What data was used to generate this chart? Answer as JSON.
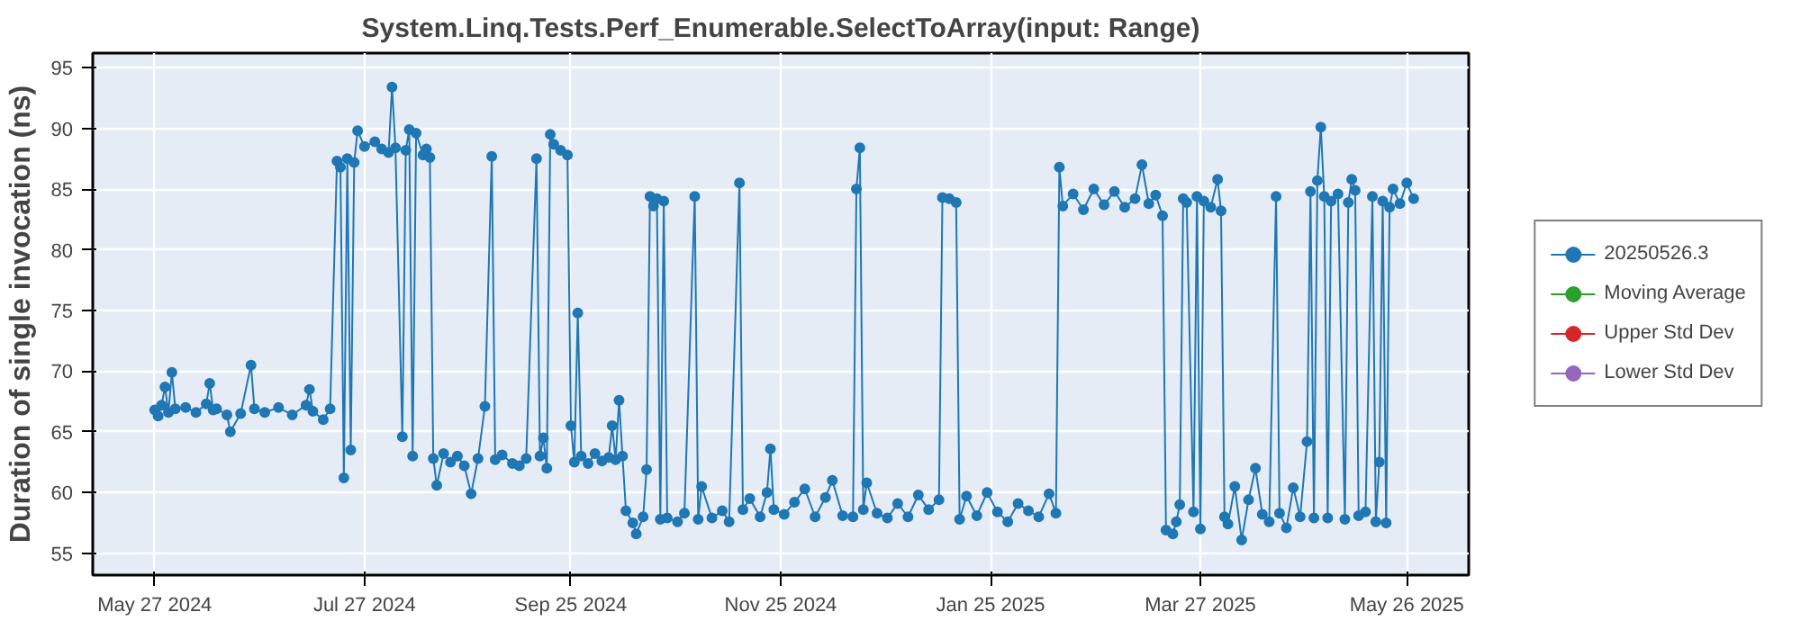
{
  "chart_data": {
    "type": "line",
    "title": "System.Linq.Tests.Perf_Enumerable.SelectToArray(input: Range)",
    "ylabel": "Duration of single invocation (ns)",
    "x": [
      "2024-05-27",
      "2024-05-28",
      "2024-05-29",
      "2024-05-30",
      "2024-05-31",
      "2024-06-01",
      "2024-06-02",
      "2024-06-05",
      "2024-06-08",
      "2024-06-11",
      "2024-06-12",
      "2024-06-13",
      "2024-06-14",
      "2024-06-17",
      "2024-06-18",
      "2024-06-21",
      "2024-06-24",
      "2024-06-25",
      "2024-06-28",
      "2024-07-02",
      "2024-07-06",
      "2024-07-10",
      "2024-07-11",
      "2024-07-12",
      "2024-07-15",
      "2024-07-17",
      "2024-07-19",
      "2024-07-20",
      "2024-07-21",
      "2024-07-22",
      "2024-07-23",
      "2024-07-24",
      "2024-07-25",
      "2024-07-27",
      "2024-07-30",
      "2024-08-01",
      "2024-08-03",
      "2024-08-04",
      "2024-08-05",
      "2024-08-07",
      "2024-08-08",
      "2024-08-09",
      "2024-08-10",
      "2024-08-11",
      "2024-08-13",
      "2024-08-14",
      "2024-08-15",
      "2024-08-16",
      "2024-08-17",
      "2024-08-19",
      "2024-08-21",
      "2024-08-23",
      "2024-08-25",
      "2024-08-27",
      "2024-08-29",
      "2024-08-31",
      "2024-09-02",
      "2024-09-03",
      "2024-09-05",
      "2024-09-08",
      "2024-09-10",
      "2024-09-12",
      "2024-09-15",
      "2024-09-16",
      "2024-09-17",
      "2024-09-18",
      "2024-09-19",
      "2024-09-20",
      "2024-09-22",
      "2024-09-24",
      "2024-09-25",
      "2024-09-26",
      "2024-09-27",
      "2024-09-28",
      "2024-09-30",
      "2024-10-02",
      "2024-10-04",
      "2024-10-06",
      "2024-10-07",
      "2024-10-08",
      "2024-10-09",
      "2024-10-10",
      "2024-10-11",
      "2024-10-13",
      "2024-10-14",
      "2024-10-16",
      "2024-10-17",
      "2024-10-18",
      "2024-10-19",
      "2024-10-20",
      "2024-10-21",
      "2024-10-22",
      "2024-10-23",
      "2024-10-26",
      "2024-10-28",
      "2024-10-31",
      "2024-11-01",
      "2024-11-02",
      "2024-11-05",
      "2024-11-08",
      "2024-11-10",
      "2024-11-13",
      "2024-11-14",
      "2024-11-16",
      "2024-11-19",
      "2024-11-21",
      "2024-11-22",
      "2024-11-23",
      "2024-11-26",
      "2024-11-29",
      "2024-12-02",
      "2024-12-05",
      "2024-12-08",
      "2024-12-10",
      "2024-12-13",
      "2024-12-16",
      "2024-12-17",
      "2024-12-18",
      "2024-12-19",
      "2024-12-20",
      "2024-12-23",
      "2024-12-26",
      "2024-12-29",
      "2025-01-01",
      "2025-01-04",
      "2025-01-07",
      "2025-01-10",
      "2025-01-11",
      "2025-01-13",
      "2025-01-15",
      "2025-01-16",
      "2025-01-18",
      "2025-01-21",
      "2025-01-24",
      "2025-01-27",
      "2025-01-30",
      "2025-02-02",
      "2025-02-05",
      "2025-02-08",
      "2025-02-11",
      "2025-02-13",
      "2025-02-14",
      "2025-02-15",
      "2025-02-18",
      "2025-02-21",
      "2025-02-24",
      "2025-02-27",
      "2025-03-02",
      "2025-03-05",
      "2025-03-08",
      "2025-03-10",
      "2025-03-12",
      "2025-03-14",
      "2025-03-16",
      "2025-03-17",
      "2025-03-19",
      "2025-03-20",
      "2025-03-21",
      "2025-03-22",
      "2025-03-23",
      "2025-03-25",
      "2025-03-26",
      "2025-03-27",
      "2025-03-28",
      "2025-03-30",
      "2025-04-01",
      "2025-04-02",
      "2025-04-03",
      "2025-04-04",
      "2025-04-06",
      "2025-04-08",
      "2025-04-10",
      "2025-04-12",
      "2025-04-14",
      "2025-04-16",
      "2025-04-18",
      "2025-04-19",
      "2025-04-21",
      "2025-04-23",
      "2025-04-25",
      "2025-04-27",
      "2025-04-28",
      "2025-04-29",
      "2025-04-30",
      "2025-05-01",
      "2025-05-02",
      "2025-05-03",
      "2025-05-04",
      "2025-05-06",
      "2025-05-08",
      "2025-05-09",
      "2025-05-10",
      "2025-05-11",
      "2025-05-12",
      "2025-05-14",
      "2025-05-16",
      "2025-05-17",
      "2025-05-18",
      "2025-05-19",
      "2025-05-20",
      "2025-05-21",
      "2025-05-22",
      "2025-05-24",
      "2025-05-26",
      "2025-05-28"
    ],
    "series": [
      {
        "name": "20250526.3",
        "color": "#1f77b4",
        "values": [
          66.8,
          66.3,
          67.2,
          68.7,
          66.6,
          69.9,
          66.9,
          67.0,
          66.6,
          67.3,
          69.0,
          66.8,
          66.9,
          66.4,
          65.0,
          66.5,
          70.5,
          66.9,
          66.6,
          67.0,
          66.4,
          67.2,
          68.5,
          66.7,
          66.0,
          66.9,
          87.3,
          86.8,
          61.2,
          87.5,
          63.5,
          87.2,
          89.8,
          88.5,
          88.9,
          88.3,
          88.0,
          93.4,
          88.4,
          64.6,
          88.2,
          89.9,
          63.0,
          89.6,
          87.8,
          88.3,
          87.6,
          62.8,
          60.6,
          63.2,
          62.5,
          63.0,
          62.2,
          59.9,
          62.8,
          67.1,
          87.7,
          62.7,
          63.1,
          62.4,
          62.2,
          62.8,
          87.5,
          63.0,
          64.5,
          62.0,
          89.5,
          88.7,
          88.2,
          87.8,
          65.5,
          62.5,
          74.8,
          63.0,
          62.4,
          63.2,
          62.6,
          62.9,
          65.5,
          62.7,
          67.6,
          63.0,
          58.5,
          57.5,
          56.6,
          58.0,
          61.9,
          84.4,
          83.6,
          84.2,
          57.8,
          84.0,
          57.9,
          57.6,
          58.3,
          84.4,
          57.8,
          60.5,
          57.9,
          58.5,
          57.6,
          85.5,
          58.6,
          59.5,
          58.0,
          60.0,
          63.6,
          58.6,
          58.2,
          59.2,
          60.3,
          58.0,
          59.6,
          61.0,
          58.1,
          58.0,
          85.0,
          88.4,
          58.6,
          60.8,
          58.3,
          57.9,
          59.1,
          58.0,
          59.8,
          58.6,
          59.4,
          84.3,
          84.2,
          83.9,
          57.8,
          59.7,
          58.1,
          60.0,
          58.4,
          57.6,
          59.1,
          58.5,
          58.0,
          59.9,
          58.3,
          86.8,
          83.6,
          84.6,
          83.3,
          85.0,
          83.7,
          84.8,
          83.5,
          84.2,
          87.0,
          83.8,
          84.5,
          82.8,
          56.9,
          56.6,
          57.6,
          59.0,
          84.2,
          83.9,
          58.4,
          84.4,
          57.0,
          84.0,
          83.5,
          85.8,
          83.2,
          58.0,
          57.4,
          60.5,
          56.1,
          59.4,
          62.0,
          58.2,
          57.6,
          84.4,
          58.3,
          57.1,
          60.4,
          58.0,
          64.2,
          84.8,
          57.9,
          85.7,
          90.1,
          84.4,
          57.9,
          84.0,
          84.6,
          57.8,
          83.9,
          85.8,
          84.9,
          58.1,
          58.4,
          84.4,
          57.6,
          62.5,
          84.0,
          57.5,
          83.5,
          85.0,
          83.8,
          85.5,
          84.2
        ]
      },
      {
        "name": "Moving Average",
        "color": "#2ca02c",
        "values": [
          null,
          null,
          null,
          null,
          null,
          null,
          null,
          null,
          null,
          null,
          null,
          null,
          null,
          null,
          null,
          null,
          null,
          null,
          null,
          null,
          null,
          null,
          null,
          null,
          null,
          null,
          null,
          null,
          null,
          null,
          null,
          null,
          null,
          null,
          null,
          null,
          null,
          null,
          null,
          null,
          null,
          null,
          null,
          null,
          null,
          null,
          null,
          null,
          null,
          null,
          null,
          null,
          null,
          null,
          null,
          null,
          null,
          null,
          null,
          null,
          null,
          null,
          null,
          null,
          null,
          null,
          null,
          null,
          null,
          null,
          null,
          null,
          null,
          null,
          null,
          null,
          null,
          null,
          null,
          null,
          null,
          null,
          null,
          null,
          null,
          null,
          null,
          null,
          null,
          null,
          null,
          null,
          null,
          null,
          null,
          null,
          null,
          null,
          null,
          null,
          null,
          null,
          null,
          null,
          null,
          null,
          null,
          null,
          null,
          null,
          null,
          null,
          null,
          null,
          null,
          null,
          null,
          null,
          null,
          null,
          null,
          null,
          null,
          null,
          null,
          null,
          null,
          null,
          null,
          null,
          null,
          null,
          null,
          null,
          null,
          null,
          null,
          null,
          null,
          null,
          null,
          null,
          null,
          null,
          null,
          null,
          null,
          null,
          null,
          null,
          null,
          null,
          null,
          null,
          null,
          null,
          null,
          null,
          null,
          null,
          null,
          null,
          null,
          null,
          null,
          null,
          null,
          null,
          null,
          null,
          null,
          null,
          null,
          null,
          null,
          null,
          null,
          null,
          null,
          null,
          null,
          null,
          null,
          null,
          null,
          null,
          null,
          null,
          null,
          null,
          null,
          null,
          null,
          null,
          null,
          null,
          null,
          null,
          null,
          null,
          null,
          null,
          null,
          null,
          null
        ]
      },
      {
        "name": "Upper Std Dev",
        "color": "#d62728",
        "values": [
          null,
          null,
          null,
          null,
          null,
          null,
          null,
          null,
          null,
          null,
          null,
          null,
          null,
          null,
          null,
          null,
          null,
          null,
          null,
          null,
          null,
          null,
          null,
          null,
          null,
          null,
          null,
          null,
          null,
          null,
          null,
          null,
          null,
          null,
          null,
          null,
          null,
          null,
          null,
          null,
          null,
          null,
          null,
          null,
          null,
          null,
          null,
          null,
          null,
          null,
          null,
          null,
          null,
          null,
          null,
          null,
          null,
          null,
          null,
          null,
          null,
          null,
          null,
          null,
          null,
          null,
          null,
          null,
          null,
          null,
          null,
          null,
          null,
          null,
          null,
          null,
          null,
          null,
          null,
          null,
          null,
          null,
          null,
          null,
          null,
          null,
          null,
          null,
          null,
          null,
          null,
          null,
          null,
          null,
          null,
          null,
          null,
          null,
          null,
          null,
          null,
          null,
          null,
          null,
          null,
          null,
          null,
          null,
          null,
          null,
          null,
          null,
          null,
          null,
          null,
          null,
          null,
          null,
          null,
          null,
          null,
          null,
          null,
          null,
          null,
          null,
          null,
          null,
          null,
          null,
          null,
          null,
          null,
          null,
          null,
          null,
          null,
          null,
          null,
          null,
          null,
          null,
          null,
          null,
          null,
          null,
          null,
          null,
          null,
          null,
          null,
          null,
          null,
          null,
          null,
          null,
          null,
          null,
          null,
          null,
          null,
          null,
          null,
          null,
          null,
          null,
          null,
          null,
          null,
          null,
          null,
          null,
          null,
          null,
          null,
          null,
          null,
          null,
          null,
          null,
          null,
          null,
          null,
          null,
          null,
          null,
          null,
          null,
          null,
          null,
          null,
          null,
          null,
          null,
          null,
          null,
          null,
          null,
          null,
          null,
          null,
          null,
          null,
          null,
          null
        ]
      },
      {
        "name": "Lower Std Dev",
        "color": "#9467bd",
        "values": [
          null,
          null,
          null,
          null,
          null,
          null,
          null,
          null,
          null,
          null,
          null,
          null,
          null,
          null,
          null,
          null,
          null,
          null,
          null,
          null,
          null,
          null,
          null,
          null,
          null,
          null,
          null,
          null,
          null,
          null,
          null,
          null,
          null,
          null,
          null,
          null,
          null,
          null,
          null,
          null,
          null,
          null,
          null,
          null,
          null,
          null,
          null,
          null,
          null,
          null,
          null,
          null,
          null,
          null,
          null,
          null,
          null,
          null,
          null,
          null,
          null,
          null,
          null,
          null,
          null,
          null,
          null,
          null,
          null,
          null,
          null,
          null,
          null,
          null,
          null,
          null,
          null,
          null,
          null,
          null,
          null,
          null,
          null,
          null,
          null,
          null,
          null,
          null,
          null,
          null,
          null,
          null,
          null,
          null,
          null,
          null,
          null,
          null,
          null,
          null,
          null,
          null,
          null,
          null,
          null,
          null,
          null,
          null,
          null,
          null,
          null,
          null,
          null,
          null,
          null,
          null,
          null,
          null,
          null,
          null,
          null,
          null,
          null,
          null,
          null,
          null,
          null,
          null,
          null,
          null,
          null,
          null,
          null,
          null,
          null,
          null,
          null,
          null,
          null,
          null,
          null,
          null,
          null,
          null,
          null,
          null,
          null,
          null,
          null,
          null,
          null,
          null,
          null,
          null,
          null,
          null,
          null,
          null,
          null,
          null,
          null,
          null,
          null,
          null,
          null,
          null,
          null,
          null,
          null,
          null,
          null,
          null,
          null,
          null,
          null,
          null,
          null,
          null,
          null,
          null,
          null,
          null,
          null,
          null,
          null,
          null,
          null,
          null,
          null,
          null,
          null,
          null,
          null,
          null,
          null,
          null,
          null,
          null,
          null,
          null,
          null,
          null,
          null,
          null,
          null
        ]
      }
    ],
    "xlim": [
      "2024-05-09",
      "2025-06-13"
    ],
    "xticks": [
      {
        "value": "2024-05-27",
        "label": "May 27 2024"
      },
      {
        "value": "2024-07-27",
        "label": "Jul 27 2024"
      },
      {
        "value": "2024-09-25",
        "label": "Sep 25 2024"
      },
      {
        "value": "2024-11-25",
        "label": "Nov 25 2024"
      },
      {
        "value": "2025-01-25",
        "label": "Jan 25 2025"
      },
      {
        "value": "2025-03-27",
        "label": "Mar 27 2025"
      },
      {
        "value": "2025-05-26",
        "label": "May 26 2025"
      }
    ],
    "ylim": [
      53.2,
      96.2
    ],
    "yticks": [
      55,
      60,
      65,
      70,
      75,
      80,
      85,
      90,
      95
    ],
    "grid": true,
    "legend": "right",
    "marker": "circle",
    "line_style": "solid"
  }
}
